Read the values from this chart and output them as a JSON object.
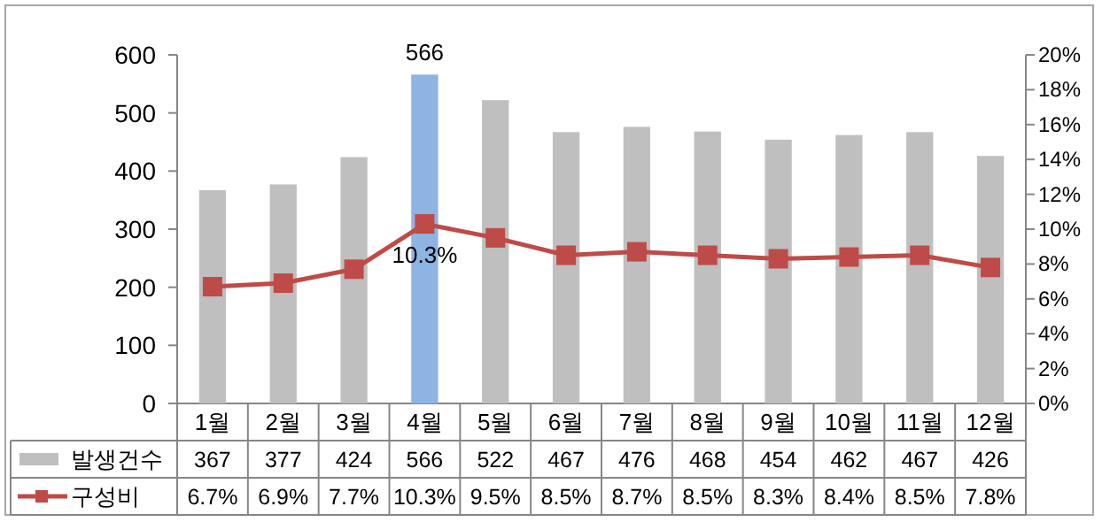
{
  "chart_data": {
    "type": "bar",
    "categories": [
      "1월",
      "2월",
      "3월",
      "4월",
      "5월",
      "6월",
      "7월",
      "8월",
      "9월",
      "10월",
      "11월",
      "12월"
    ],
    "series": [
      {
        "name": "발생건수",
        "color": "#bfbfbf",
        "colors": [
          "#bfbfbf",
          "#bfbfbf",
          "#bfbfbf",
          "#8db4e2",
          "#bfbfbf",
          "#bfbfbf",
          "#bfbfbf",
          "#bfbfbf",
          "#bfbfbf",
          "#bfbfbf",
          "#bfbfbf",
          "#bfbfbf"
        ],
        "values": [
          367,
          377,
          424,
          566,
          522,
          467,
          476,
          468,
          454,
          462,
          467,
          426
        ],
        "value_labels": [
          "367",
          "377",
          "424",
          "566",
          "522",
          "467",
          "476",
          "468",
          "454",
          "462",
          "467",
          "426"
        ]
      },
      {
        "name": "구성비",
        "type": "line",
        "axis": "y2",
        "color": "#be4b48",
        "marker": "square",
        "values": [
          6.7,
          6.9,
          7.7,
          10.3,
          9.5,
          8.5,
          8.7,
          8.5,
          8.3,
          8.4,
          8.5,
          7.8
        ],
        "value_labels": [
          "6.7%",
          "6.9%",
          "7.7%",
          "10.3%",
          "9.5%",
          "8.5%",
          "8.7%",
          "8.5%",
          "8.3%",
          "8.4%",
          "8.5%",
          "7.8%"
        ]
      }
    ],
    "ylim": [
      0,
      600
    ],
    "yticks": [
      0,
      100,
      200,
      300,
      400,
      500,
      600
    ],
    "y2lim": [
      0,
      20
    ],
    "y2ticks": [
      {
        "value": 0,
        "label": "0%"
      },
      {
        "value": 2,
        "label": "2%"
      },
      {
        "value": 4,
        "label": "4%"
      },
      {
        "value": 6,
        "label": "6%"
      },
      {
        "value": 8,
        "label": "8%"
      },
      {
        "value": 10,
        "label": "10%"
      },
      {
        "value": 12,
        "label": "12%"
      },
      {
        "value": 14,
        "label": "14%"
      },
      {
        "value": 16,
        "label": "16%"
      },
      {
        "value": 18,
        "label": "18%"
      },
      {
        "value": 20,
        "label": "20%"
      }
    ],
    "annotations": [
      {
        "text": "566",
        "x": "4월",
        "y": 566
      },
      "10.3%"
    ],
    "grid": false,
    "legend": "bottom"
  }
}
